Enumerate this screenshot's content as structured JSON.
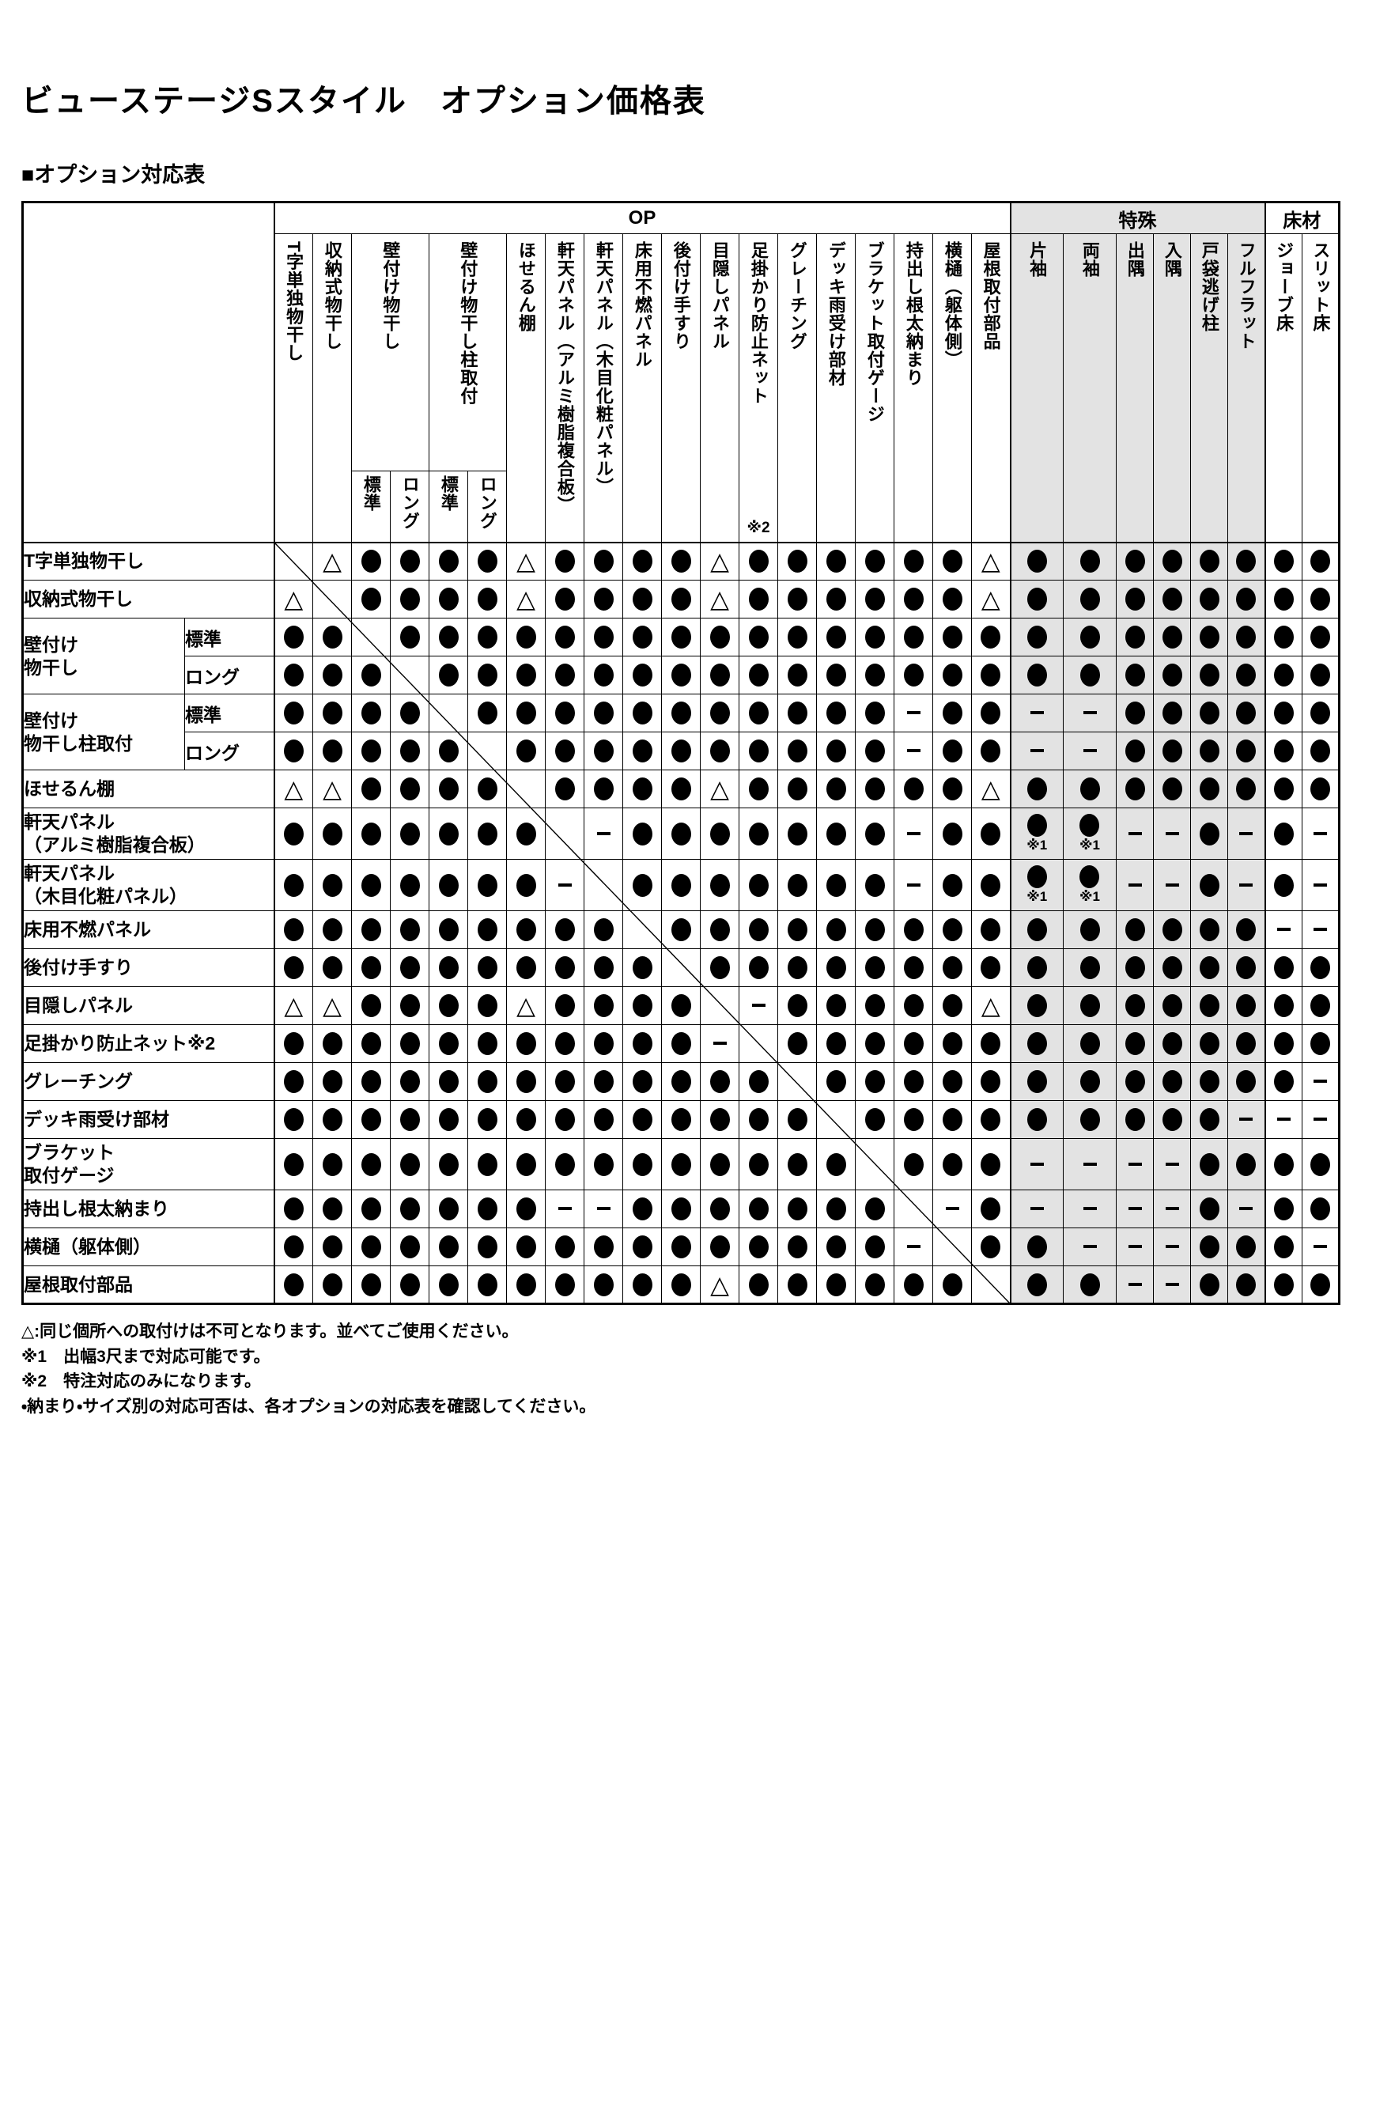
{
  "page": {
    "title": "ビューステージSスタイル　オプション価格表",
    "section_title": "■オプション対応表"
  },
  "table": {
    "groups": [
      {
        "label": "OP",
        "span": 19,
        "shaded": false
      },
      {
        "label": "特殊",
        "span": 6,
        "shaded": true
      },
      {
        "label": "床材",
        "span": 2,
        "shaded": false
      }
    ],
    "columns": [
      {
        "id": 1,
        "label": "T字単独物干し"
      },
      {
        "id": 2,
        "label": "収納式物干し"
      },
      {
        "id": 3,
        "label": "壁付け物干し",
        "span": 2,
        "subs": [
          "標準",
          "ロング"
        ]
      },
      {
        "id": 5,
        "label": "壁付け物干し柱取付",
        "span": 2,
        "subs": [
          "標準",
          "ロング"
        ]
      },
      {
        "id": 7,
        "label": "ほせるん棚"
      },
      {
        "id": 8,
        "label": "軒天パネル（アルミ樹脂複合板）"
      },
      {
        "id": 9,
        "label": "軒天パネル（木目化粧パネル）"
      },
      {
        "id": 10,
        "label": "床用不燃パネル"
      },
      {
        "id": 11,
        "label": "後付け手すり"
      },
      {
        "id": 12,
        "label": "目隠しパネル"
      },
      {
        "id": 13,
        "label": "足掛かり防止ネット",
        "note": "※2"
      },
      {
        "id": 14,
        "label": "グレーチング"
      },
      {
        "id": 15,
        "label": "デッキ雨受け部材"
      },
      {
        "id": 16,
        "label": "ブラケット取付ゲージ"
      },
      {
        "id": 17,
        "label": "持出し根太納まり"
      },
      {
        "id": 18,
        "label": "横樋（躯体側）"
      },
      {
        "id": 19,
        "label": "屋根取付部品"
      },
      {
        "id": 20,
        "label": "片袖",
        "shaded": true
      },
      {
        "id": 21,
        "label": "両袖",
        "shaded": true
      },
      {
        "id": 22,
        "label": "出隅",
        "shaded": true
      },
      {
        "id": 23,
        "label": "入隅",
        "shaded": true
      },
      {
        "id": 24,
        "label": "戸袋逃げ柱",
        "shaded": true
      },
      {
        "id": 25,
        "label": "フルフラット",
        "shaded": true
      },
      {
        "id": 26,
        "label": "ジョーブ床"
      },
      {
        "id": 27,
        "label": "スリット床"
      }
    ],
    "symbols": {
      "O": "●",
      "T": "△",
      "D": "－",
      "N": "●※1",
      "X": ""
    },
    "rows": [
      {
        "label": "T字単独物干し",
        "cells": "XTOOOOTOOOOTOOOOOOTOOOOOOOO"
      },
      {
        "label": "収納式物干し",
        "cells": "TXOOOOTOOOOTOOOOOOTOOOOOOOO"
      },
      {
        "group": "壁付け\n物干し",
        "sub": "標準",
        "cells": "OOXOOOOOOOOOOOOOOOOOOOOOOOO"
      },
      {
        "sub": "ロング",
        "cells": "OOOXOOOOOOOOOOOOOOOOOOOOOOO"
      },
      {
        "group": "壁付け\n物干し柱取付",
        "sub": "標準",
        "cells": "OOOOXOOOOOOOOOOODOODDOOOOOO"
      },
      {
        "sub": "ロング",
        "cells": "OOOOOXOOOOOOOOOODOODDOOOOOO"
      },
      {
        "label": "ほせるん棚",
        "cells": "TTOOOOXOOOOTOOOOOOTOOOOOOOO"
      },
      {
        "label": "軒天パネル\n（アルミ樹脂複合板）",
        "tall": true,
        "cells": "OOOOOOOXDOOOOOOODOONNDDODOD"
      },
      {
        "label": "軒天パネル\n（木目化粧パネル）",
        "tall": true,
        "cells": "OOOOOOODXOOOOOOODOONNDDODOD"
      },
      {
        "label": "床用不燃パネル",
        "cells": "OOOOOOOOOXOOOOOOOOOOOOOOODD"
      },
      {
        "label": "後付け手すり",
        "cells": "OOOOOOOOOOXOOOOOOOOOOOOOOOO"
      },
      {
        "label": "目隠しパネル",
        "cells": "TTOOOOTOOOOXDOOOOOTOOOOOOOO"
      },
      {
        "label": "足掛かり防止ネット※2",
        "cells": "OOOOOOOOOOODXOOOOOOOOOOOOOO"
      },
      {
        "label": "グレーチング",
        "cells": "OOOOOOOOOOOOOXOOOOOOOOOOOOD"
      },
      {
        "label": "デッキ雨受け部材",
        "cells": "OOOOOOOOOOOOOOXOOOOOOOOODDD"
      },
      {
        "label": "ブラケット\n取付ゲージ",
        "tall": true,
        "cells": "OOOOOOOOOOOOOOOXOOODDDDOOOO"
      },
      {
        "label": "持出し根太納まり",
        "cells": "OOOOOOODDOOOOOOOXDODDDDODOO"
      },
      {
        "label": "横樋（躯体側）",
        "cells": "OOOOOOOOOOOOOOOODXOODDDOOOD"
      },
      {
        "label": "屋根取付部品",
        "cells": "OOOOOOOOOOOTOOOOOOXOODDOOOO"
      }
    ]
  },
  "notes": [
    "△:同じ個所への取付けは不可となります。並べてご使用ください。",
    "※1　出幅3尺まで対応可能です。",
    "※2　特注対応のみになります。",
    "・納まり・サイズ別の対応可否は、各オプションの対応表を確認してください。"
  ]
}
